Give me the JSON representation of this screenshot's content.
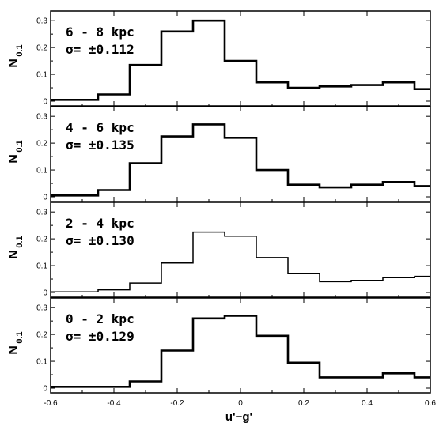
{
  "chart_data": [
    {
      "type": "histogram",
      "panel_label": "6 - 8 kpc",
      "sigma_label": "σ=  ±0.112",
      "ylabel": "N",
      "ylabel_sub": "0.1",
      "ylim": [
        0,
        0.33
      ],
      "yticks": [
        0,
        0.1,
        0.2,
        0.3
      ],
      "bin_edges": [
        -0.6,
        -0.45,
        -0.35,
        -0.25,
        -0.15,
        -0.05,
        0.05,
        0.15,
        0.25,
        0.35,
        0.45,
        0.55,
        0.6
      ],
      "values": [
        0.005,
        0.025,
        0.135,
        0.26,
        0.3,
        0.15,
        0.07,
        0.05,
        0.055,
        0.06,
        0.07,
        0.045
      ]
    },
    {
      "type": "histogram",
      "panel_label": "4 - 6 kpc",
      "sigma_label": "σ=  ±0.135",
      "ylabel": "N",
      "ylabel_sub": "0.1",
      "ylim": [
        0,
        0.33
      ],
      "yticks": [
        0,
        0.1,
        0.2,
        0.3
      ],
      "bin_edges": [
        -0.6,
        -0.45,
        -0.35,
        -0.25,
        -0.15,
        -0.05,
        0.05,
        0.15,
        0.25,
        0.35,
        0.45,
        0.55,
        0.6
      ],
      "values": [
        0.005,
        0.025,
        0.125,
        0.225,
        0.27,
        0.22,
        0.1,
        0.045,
        0.035,
        0.045,
        0.055,
        0.04
      ]
    },
    {
      "type": "histogram",
      "panel_label": "2 - 4 kpc",
      "sigma_label": "σ=  ±0.130",
      "ylabel": "N",
      "ylabel_sub": "0.1",
      "ylim": [
        0,
        0.33
      ],
      "yticks": [
        0,
        0.1,
        0.2,
        0.3
      ],
      "bin_edges": [
        -0.6,
        -0.45,
        -0.35,
        -0.25,
        -0.15,
        -0.05,
        0.05,
        0.15,
        0.25,
        0.35,
        0.45,
        0.55,
        0.6
      ],
      "values": [
        0.002,
        0.01,
        0.035,
        0.11,
        0.225,
        0.21,
        0.13,
        0.07,
        0.04,
        0.045,
        0.055,
        0.06
      ]
    },
    {
      "type": "histogram",
      "panel_label": "0 - 2 kpc",
      "sigma_label": "σ=  ±0.129",
      "ylabel": "N",
      "ylabel_sub": "0.1",
      "ylim": [
        0,
        0.33
      ],
      "yticks": [
        0,
        0.1,
        0.2,
        0.3
      ],
      "bin_edges": [
        -0.6,
        -0.45,
        -0.35,
        -0.25,
        -0.15,
        -0.05,
        0.05,
        0.15,
        0.25,
        0.35,
        0.45,
        0.55,
        0.6
      ],
      "values": [
        0.005,
        0.005,
        0.025,
        0.14,
        0.26,
        0.27,
        0.195,
        0.095,
        0.04,
        0.04,
        0.055,
        0.04
      ]
    }
  ],
  "x_axis": {
    "label": "u'−g'",
    "xlim": [
      -0.6,
      0.6
    ],
    "ticks": [
      -0.6,
      -0.4,
      -0.2,
      0,
      0.2,
      0.4,
      0.6
    ],
    "tick_labels": [
      "-0.6",
      "-0.4",
      "-0.2",
      "0",
      "0.2",
      "0.4",
      "0.6"
    ]
  }
}
